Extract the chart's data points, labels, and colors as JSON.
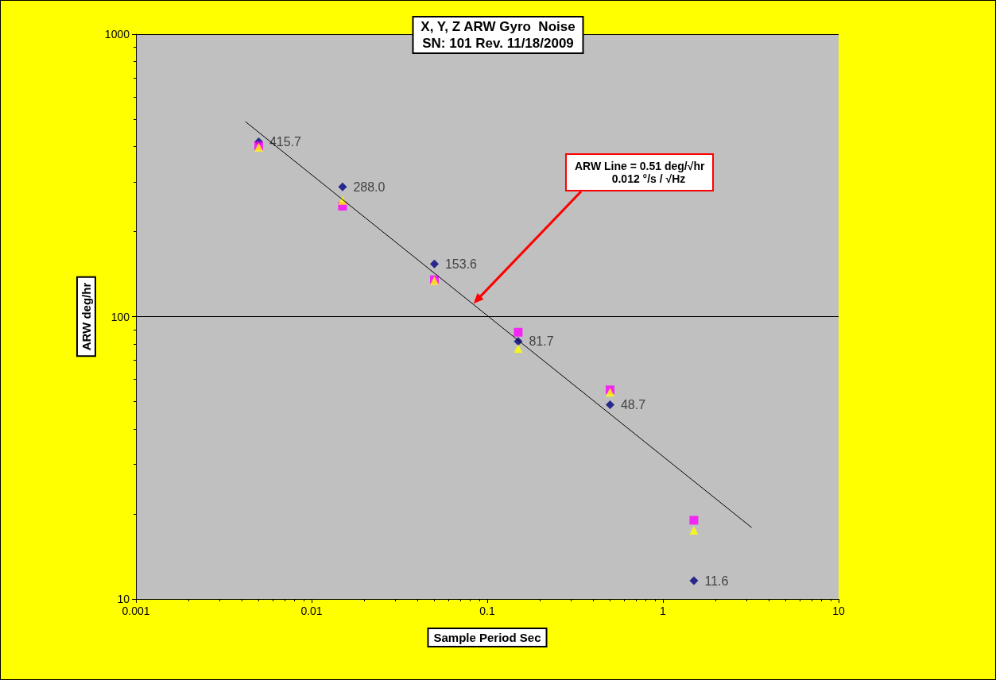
{
  "chart_data": {
    "type": "scatter",
    "title": "X, Y, Z ARW Gyro  Noise",
    "subtitle": "SN: 101 Rev. 11/18/2009",
    "xlabel": "Sample Period Sec",
    "ylabel": "ARW deg/hr",
    "log": "xy",
    "grid": "y",
    "xlim": [
      0.001,
      10
    ],
    "ylim": [
      10,
      1000
    ],
    "xticks": [
      0.001,
      0.01,
      0.1,
      1,
      10
    ],
    "yticks": [
      10,
      100,
      1000
    ],
    "annotations": [
      "ARW Line = 0.51 deg/√hr\n            0.012 °/s / √Hz"
    ],
    "series": [
      {
        "color": "#000080",
        "marker": "diamond",
        "x": [
          0.005,
          0.015,
          0.05,
          0.15,
          0.5,
          1.5
        ],
        "values": [
          415.7,
          288.0,
          153.6,
          81.7,
          48.7,
          11.6
        ],
        "value_labels": [
          "415.7",
          "288.0",
          "153.6",
          "81.7",
          "48.7",
          "11.6"
        ]
      },
      {
        "color": "#ff00ff",
        "marker": "square",
        "x": [
          0.005,
          0.015,
          0.05,
          0.15,
          0.5,
          1.5
        ],
        "values": [
          402,
          246,
          135,
          88,
          55,
          19
        ]
      },
      {
        "color": "#ffff00",
        "marker": "triangle",
        "x": [
          0.005,
          0.015,
          0.05,
          0.15,
          0.5,
          1.5
        ],
        "values": [
          398,
          258,
          134,
          77,
          54,
          17.5
        ]
      },
      {
        "type": "line",
        "color": "#000000",
        "marker": "none",
        "x": [
          0.0042,
          3.2
        ],
        "values": [
          490,
          17.9
        ]
      }
    ]
  }
}
